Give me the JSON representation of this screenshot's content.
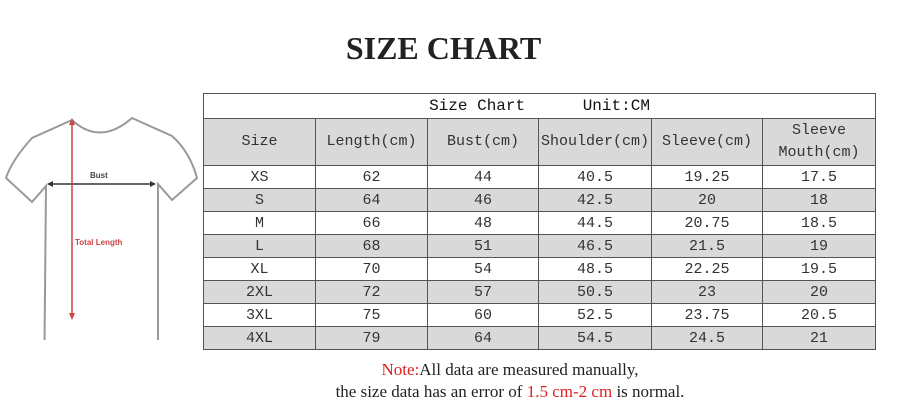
{
  "heading": "SIZE CHART",
  "diagram": {
    "bust_label": "Bust",
    "length_label": "Total Length"
  },
  "table": {
    "caption": "Size Chart",
    "unit": "Unit:CM",
    "headers": [
      "Size",
      "Length(cm)",
      "Bust(cm)",
      "Shoulder(cm)",
      "Sleeve(cm)",
      "Sleeve Mouth(cm)"
    ],
    "rows": [
      [
        "XS",
        "62",
        "44",
        "40.5",
        "19.25",
        "17.5"
      ],
      [
        "S",
        "64",
        "46",
        "42.5",
        "20",
        "18"
      ],
      [
        "M",
        "66",
        "48",
        "44.5",
        "20.75",
        "18.5"
      ],
      [
        "L",
        "68",
        "51",
        "46.5",
        "21.5",
        "19"
      ],
      [
        "XL",
        "70",
        "54",
        "48.5",
        "22.25",
        "19.5"
      ],
      [
        "2XL",
        "72",
        "57",
        "50.5",
        "23",
        "20"
      ],
      [
        "3XL",
        "75",
        "60",
        "52.5",
        "23.75",
        "20.5"
      ],
      [
        "4XL",
        "79",
        "64",
        "54.5",
        "24.5",
        "21"
      ]
    ]
  },
  "note": {
    "label": "Note:",
    "line1": "All data are measured manually,",
    "line2_a": "the size data has an error of ",
    "line2_range": "1.5 cm-2 cm",
    "line2_b": " is normal."
  },
  "colors": {
    "accent": "#e02020",
    "row_shade": "#d9d9d9"
  }
}
